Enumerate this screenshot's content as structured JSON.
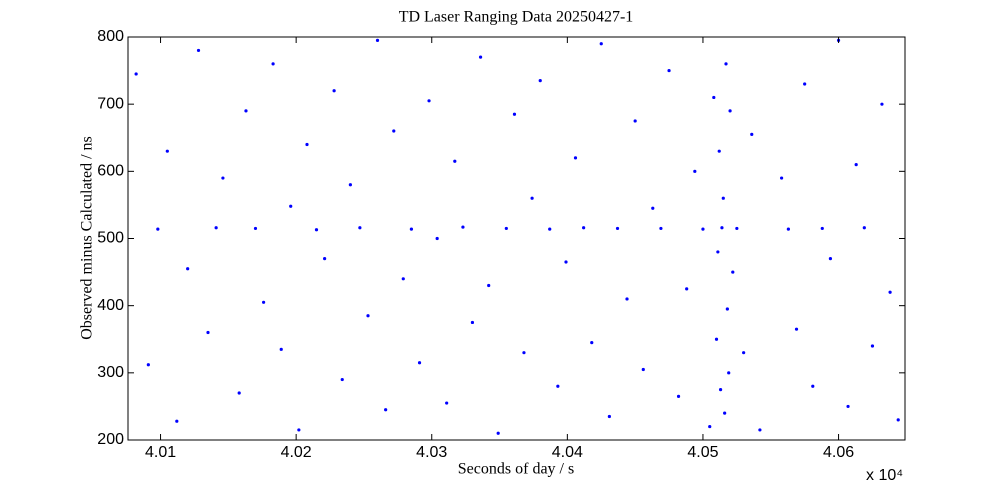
{
  "chart_data": {
    "type": "scatter",
    "title": "TD Laser Ranging Data 20250427-1",
    "x_label": "Seconds of day / s",
    "y_label": "Observed minus Calculated / ns",
    "x_multiplier": "x 10⁴",
    "xlim": [
      40076,
      40649
    ],
    "ylim": [
      200,
      800
    ],
    "xticks": [
      {
        "value": 40100,
        "label": "4.01"
      },
      {
        "value": 40200,
        "label": "4.02"
      },
      {
        "value": 40300,
        "label": "4.03"
      },
      {
        "value": 40400,
        "label": "4.04"
      },
      {
        "value": 40500,
        "label": "4.05"
      },
      {
        "value": 40600,
        "label": "4.06"
      }
    ],
    "yticks": [
      200,
      300,
      400,
      500,
      600,
      700,
      800
    ],
    "grid": false,
    "series": [
      {
        "color": "#0000ff",
        "x": [
          40082,
          40091,
          40098,
          40105,
          40112,
          40120,
          40128,
          40135,
          40141,
          40146,
          40158,
          40163,
          40170,
          40176,
          40183,
          40189,
          40196,
          40202,
          40208,
          40215,
          40221,
          40228,
          40234,
          40240,
          40247,
          40253,
          40260,
          40266,
          40272,
          40279,
          40285,
          40291,
          40298,
          40304,
          40311,
          40317,
          40323,
          40330,
          40336,
          40342,
          40349,
          40355,
          40361,
          40368,
          40374,
          40380,
          40387,
          40393,
          40399,
          40406,
          40412,
          40418,
          40425,
          40431,
          40437,
          40444,
          40450,
          40456,
          40463,
          40469,
          40475,
          40482,
          40488,
          40494,
          40500,
          40505,
          40508,
          40510,
          40511,
          40512,
          40513,
          40514,
          40515,
          40516,
          40517,
          40518,
          40519,
          40520,
          40522,
          40525,
          40530,
          40536,
          40542,
          40558,
          40563,
          40569,
          40575,
          40581,
          40588,
          40594,
          40600,
          40607,
          40613,
          40619,
          40625,
          40632,
          40638,
          40644
        ],
        "values": [
          745,
          312,
          514,
          630,
          228,
          455,
          780,
          360,
          516,
          590,
          270,
          690,
          515,
          405,
          760,
          335,
          548,
          215,
          640,
          513,
          470,
          720,
          290,
          580,
          516,
          385,
          795,
          245,
          660,
          440,
          514,
          315,
          705,
          500,
          255,
          615,
          517,
          375,
          770,
          430,
          210,
          515,
          685,
          330,
          560,
          735,
          514,
          280,
          465,
          620,
          516,
          345,
          790,
          235,
          515,
          410,
          675,
          305,
          545,
          515,
          750,
          265,
          425,
          600,
          514,
          220,
          710,
          350,
          480,
          630,
          275,
          516,
          560,
          240,
          760,
          395,
          300,
          690,
          450,
          515,
          330,
          655,
          215,
          590,
          514,
          365,
          730,
          280,
          515,
          470,
          795,
          250,
          610,
          516,
          340,
          700,
          420,
          230
        ]
      }
    ]
  }
}
